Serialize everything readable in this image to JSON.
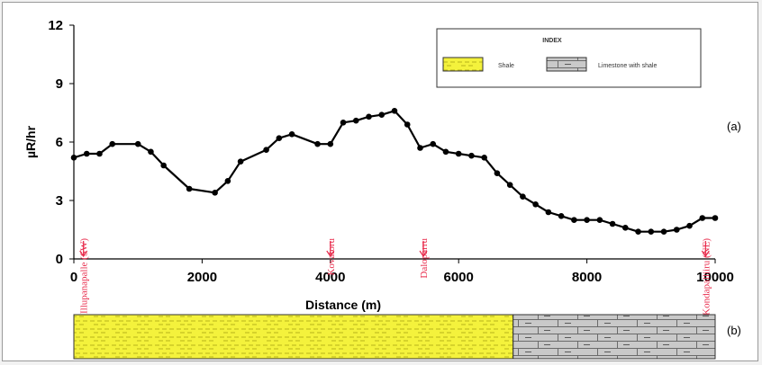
{
  "panel_labels": {
    "a": "(a)",
    "b": "(b)"
  },
  "colors": {
    "shale": "#f4f23c",
    "shale_mark": "#b9b41a",
    "limestone": "#c9c9c9",
    "limestone_mark": "#6a6a6a",
    "marker": "#e8294a",
    "line": "#000000"
  },
  "chart_data": {
    "type": "line",
    "title": "",
    "xlabel": "Distance (m)",
    "ylabel": "µR/hr",
    "xlim": [
      0,
      10000
    ],
    "ylim": [
      0,
      12
    ],
    "x_ticks": [
      0,
      2000,
      4000,
      6000,
      8000,
      10000
    ],
    "y_ticks": [
      0,
      3,
      6,
      9,
      12
    ],
    "grid": false,
    "legend_position": "top-right",
    "legend": {
      "title": "INDEX",
      "entries": [
        {
          "label": "Shale",
          "pattern": "shale"
        },
        {
          "label": "Limestone with shale",
          "pattern": "limestone"
        }
      ]
    },
    "series": [
      {
        "x": [
          0,
          200,
          400,
          600,
          1000,
          1200,
          1400,
          1800,
          2200,
          2400,
          2600,
          3000,
          3200,
          3400,
          3800,
          4000,
          4200,
          4400,
          4600,
          4800,
          5000,
          5200,
          5400,
          5600,
          5800,
          6000,
          6200,
          6400,
          6600,
          6800,
          7000,
          7200,
          7400,
          7600,
          7800,
          8000,
          8200,
          8400,
          8600,
          8800,
          9000,
          9200,
          9400,
          9600,
          9800,
          10000
        ],
        "y": [
          5.2,
          5.4,
          5.4,
          5.9,
          5.9,
          5.5,
          4.8,
          3.6,
          3.4,
          4.0,
          5.0,
          5.6,
          6.2,
          6.4,
          5.9,
          5.9,
          7.0,
          7.1,
          7.3,
          7.4,
          7.6,
          6.9,
          5.7,
          5.9,
          5.5,
          5.4,
          5.3,
          5.2,
          4.4,
          3.8,
          3.2,
          2.8,
          2.4,
          2.2,
          2.0,
          2.0,
          2.0,
          1.8,
          1.6,
          1.4,
          1.4,
          1.4,
          1.5,
          1.7,
          2.1,
          2.1
        ]
      }
    ],
    "annotations": [
      {
        "text": "Illupanapalle (SW)",
        "x": 150
      },
      {
        "text": "Kovatoru",
        "x": 4000
      },
      {
        "text": "Daloparru",
        "x": 5450
      },
      {
        "text": "Kondapalliiru (NE)",
        "x": 9850
      }
    ],
    "lithology": [
      {
        "type": "shale",
        "from": 0,
        "to": 6850
      },
      {
        "type": "limestone",
        "from": 6850,
        "to": 10000
      }
    ]
  }
}
